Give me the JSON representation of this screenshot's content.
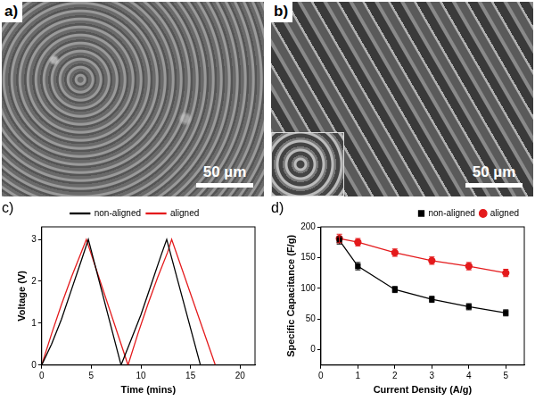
{
  "images": [
    {
      "panel": "a)",
      "scale_bar": "50 µm"
    },
    {
      "panel": "b)",
      "scale_bar": "50 µm"
    }
  ],
  "chart_data": [
    {
      "panel": "c)",
      "type": "line",
      "x_label": "Time (mins)",
      "y_label": "Voltage (V)",
      "xlim": [
        0,
        21.5
      ],
      "xticks": [
        0,
        5,
        10,
        15,
        20
      ],
      "ylim": [
        0,
        3.3
      ],
      "yticks": [
        0,
        1,
        2,
        3
      ],
      "grid": false,
      "legend": "top",
      "series": [
        {
          "name": "non-aligned",
          "color": "#000000",
          "marker": "none",
          "x": [
            0,
            1,
            2,
            3,
            4,
            4.7,
            8.0,
            9,
            10,
            11,
            12,
            12.6,
            16.0
          ],
          "values": [
            0,
            0.5,
            1.1,
            1.8,
            2.5,
            3.0,
            0,
            0.6,
            1.2,
            1.9,
            2.6,
            3.0,
            0
          ]
        },
        {
          "name": "aligned",
          "color": "#e41a1c",
          "marker": "none",
          "x": [
            0,
            1,
            2,
            3,
            4,
            4.5,
            8.7,
            9.7,
            10.7,
            11.7,
            12.7,
            13.1,
            17.5
          ],
          "values": [
            0,
            0.75,
            1.45,
            2.1,
            2.7,
            3.0,
            0,
            0.75,
            1.45,
            2.1,
            2.7,
            3.0,
            0
          ]
        }
      ]
    },
    {
      "panel": "d)",
      "type": "line",
      "x_label": "Current Density (A/g)",
      "y_label": "Specific Capacitance (F/g)",
      "xlim": [
        0,
        5.5
      ],
      "xticks": [
        0,
        1,
        2,
        3,
        4,
        5
      ],
      "ylim": [
        -25,
        200
      ],
      "yticks": [
        0,
        50,
        100,
        150,
        200
      ],
      "grid": false,
      "legend": "top right",
      "series": [
        {
          "name": "non-aligned",
          "color": "#000000",
          "marker": "square",
          "x": [
            0.5,
            1,
            2,
            3,
            4,
            5
          ],
          "values": [
            178,
            136,
            98,
            82,
            70,
            60
          ],
          "errors": [
            6,
            6,
            5,
            5,
            5,
            5
          ]
        },
        {
          "name": "aligned",
          "color": "#e41a1c",
          "marker": "circle",
          "x": [
            0.5,
            1,
            2,
            3,
            4,
            5
          ],
          "values": [
            181,
            175,
            158,
            145,
            136,
            125
          ],
          "errors": [
            7,
            6,
            6,
            6,
            6,
            6
          ]
        }
      ]
    }
  ]
}
